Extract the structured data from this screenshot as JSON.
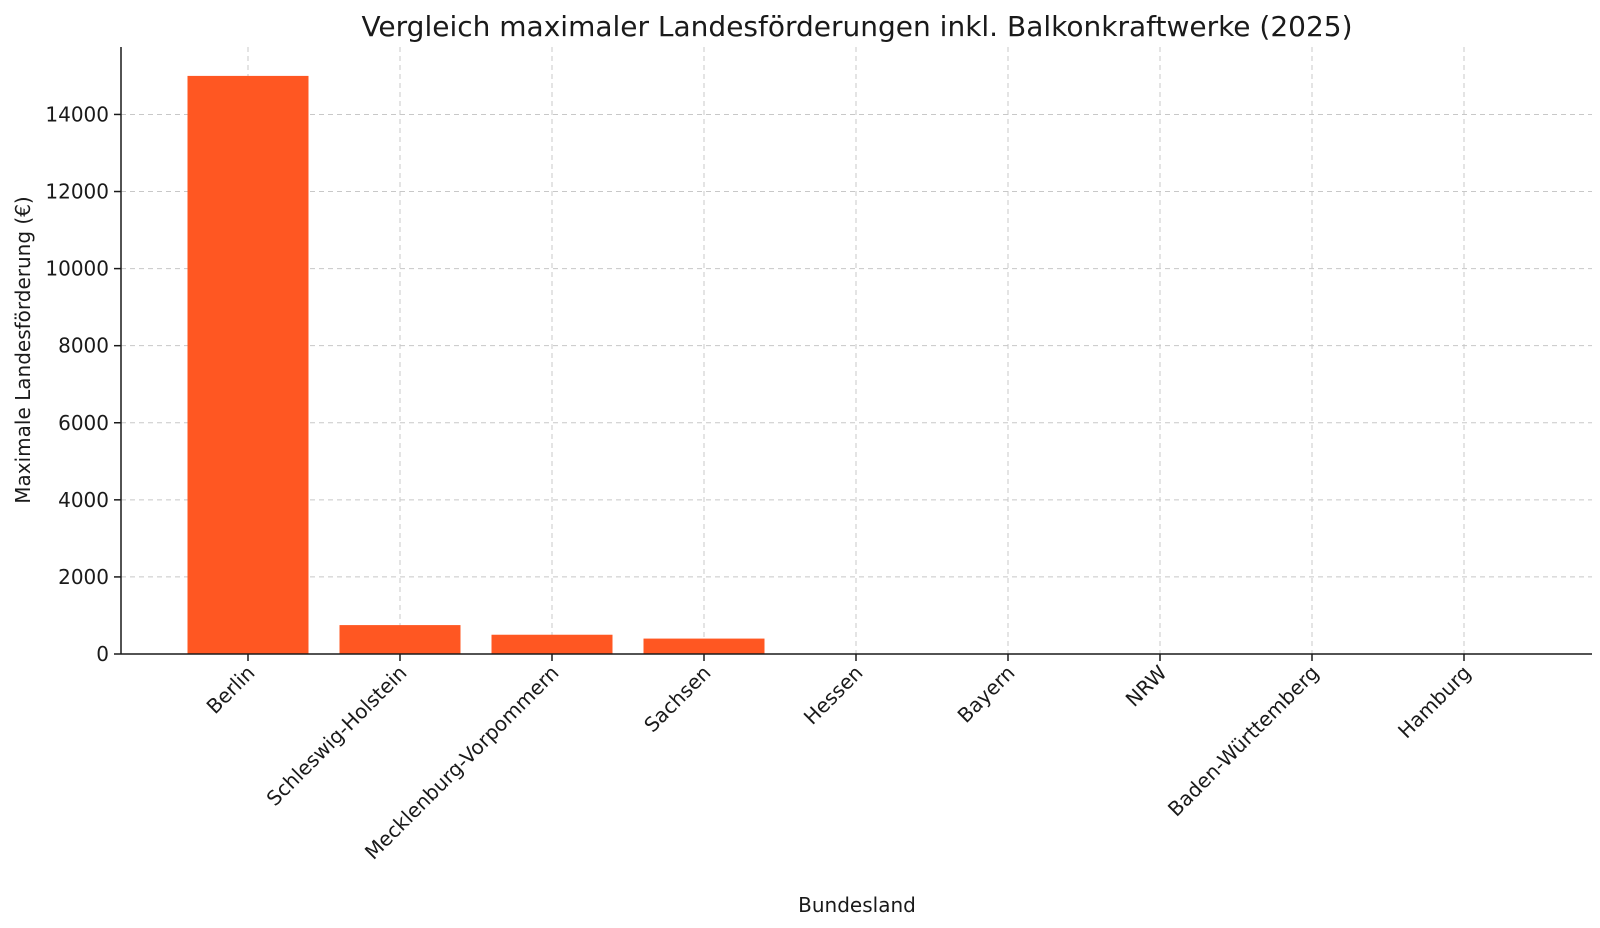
{
  "chart_data": {
    "type": "bar",
    "title": "Vergleich maximaler Landesförderungen inkl. Balkonkraftwerke (2025)",
    "xlabel": "Bundesland",
    "ylabel": "Maximale Landesförderung (€)",
    "categories": [
      "Berlin",
      "Schleswig-Holstein",
      "Mecklenburg-Vorpommern",
      "Sachsen",
      "Hessen",
      "Bayern",
      "NRW",
      "Baden-Württemberg",
      "Hamburg"
    ],
    "values": [
      15000,
      750,
      500,
      400,
      0,
      0,
      0,
      0,
      0
    ],
    "ylim": [
      0,
      15750
    ],
    "yticks": [
      0,
      2000,
      4000,
      6000,
      8000,
      10000,
      12000,
      14000
    ],
    "grid": true,
    "bar_color": "#ff5722"
  }
}
